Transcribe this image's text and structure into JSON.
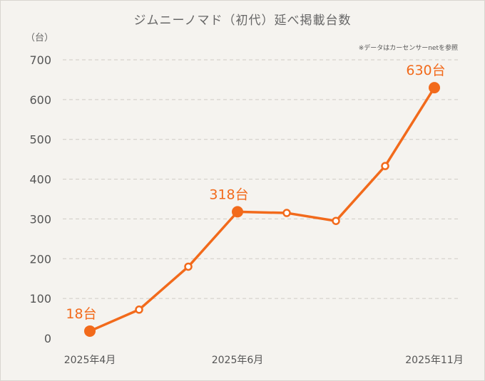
{
  "chart_data": {
    "type": "line",
    "title": "ジムニーノマド（初代）延べ掲載台数",
    "unit_label": "（台）",
    "source_note": "※データはカーセンサーnetを参照",
    "x": [
      "2025年4月",
      "",
      "",
      "2025年6月",
      "",
      "",
      "",
      "2025年11月"
    ],
    "x_tick_labels": [
      "2025年4月",
      "2025年6月",
      "2025年11月"
    ],
    "y_ticks": [
      "700",
      "600",
      "500",
      "400",
      "300",
      "200",
      "100",
      "0"
    ],
    "ylim": [
      0,
      700
    ],
    "grid": true,
    "series": [
      {
        "values": [
          18,
          72,
          180,
          318,
          315,
          295,
          433,
          630
        ]
      }
    ],
    "highlighted_points": [
      {
        "index": 0,
        "label": "18台"
      },
      {
        "index": 3,
        "label": "318台"
      },
      {
        "index": 7,
        "label": "630台"
      }
    ],
    "colors": {
      "line": "#f26a1b",
      "grid": "#cfcbc5",
      "axis_text": "#555555"
    }
  }
}
